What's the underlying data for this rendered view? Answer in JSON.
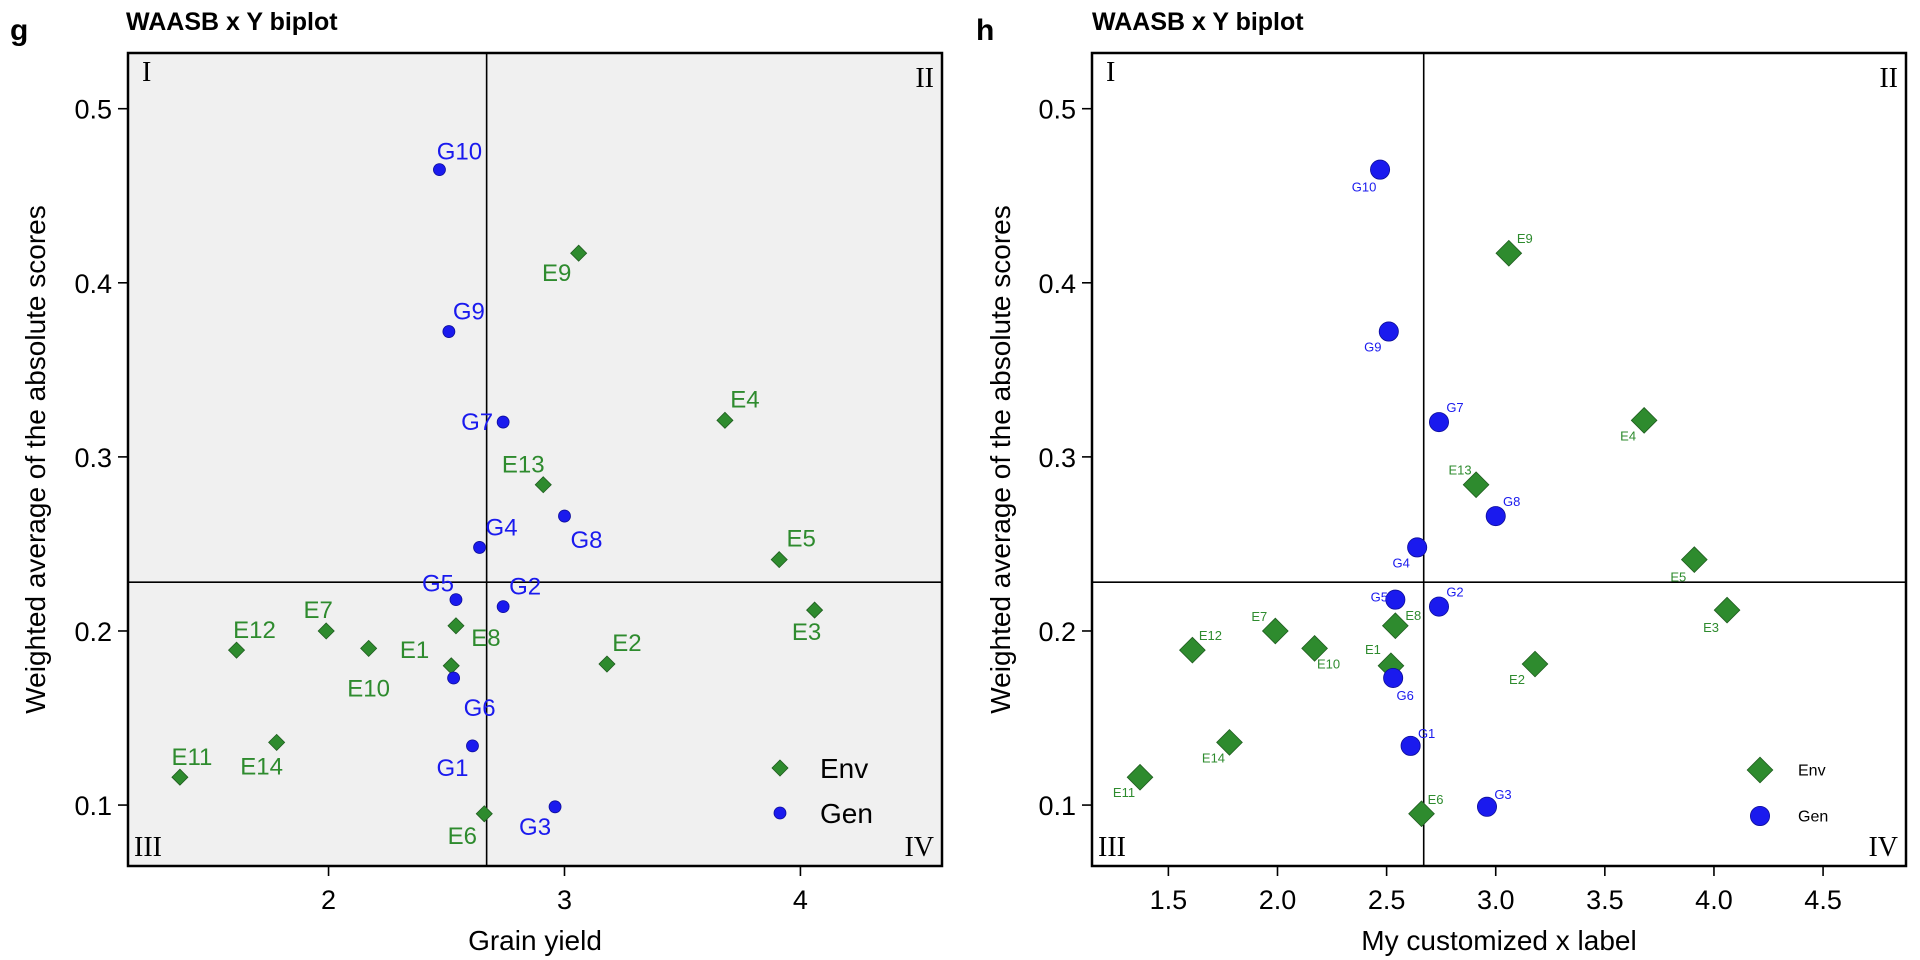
{
  "chart_data": [
    {
      "type": "scatter",
      "panel_label": "g",
      "title": "WAASB x Y biplot",
      "xlabel": "Grain yield",
      "ylabel": "Weighted average of the absolute scores",
      "xlim": [
        1.15,
        4.6
      ],
      "ylim": [
        0.065,
        0.532
      ],
      "xticks": [
        2,
        3,
        4
      ],
      "yticks": [
        0.1,
        0.2,
        0.3,
        0.4,
        0.5
      ],
      "xtick_labels": [
        "2",
        "3",
        "4"
      ],
      "ytick_labels": [
        "0.1",
        "0.2",
        "0.3",
        "0.4",
        "0.5"
      ],
      "background": "#f0f0f0",
      "grid": false,
      "reference_lines": {
        "x": 2.67,
        "y": 0.228
      },
      "quadrant_labels": [
        "I",
        "II",
        "III",
        "IV"
      ],
      "legend": {
        "position": "bottom-right",
        "entries": [
          "Env",
          "Gen"
        ]
      },
      "series": [
        {
          "name": "Env",
          "marker": "diamond",
          "color": "#2e8b2e",
          "points": [
            {
              "label": "E1",
              "x": 2.52,
              "y": 0.18
            },
            {
              "label": "E2",
              "x": 3.18,
              "y": 0.181
            },
            {
              "label": "E3",
              "x": 4.06,
              "y": 0.212
            },
            {
              "label": "E4",
              "x": 3.68,
              "y": 0.321
            },
            {
              "label": "E5",
              "x": 3.91,
              "y": 0.241
            },
            {
              "label": "E6",
              "x": 2.66,
              "y": 0.095
            },
            {
              "label": "E7",
              "x": 1.99,
              "y": 0.2
            },
            {
              "label": "E8",
              "x": 2.54,
              "y": 0.203
            },
            {
              "label": "E9",
              "x": 3.06,
              "y": 0.417
            },
            {
              "label": "E10",
              "x": 2.17,
              "y": 0.19
            },
            {
              "label": "E11",
              "x": 1.37,
              "y": 0.116
            },
            {
              "label": "E12",
              "x": 1.61,
              "y": 0.189
            },
            {
              "label": "E13",
              "x": 2.91,
              "y": 0.284
            },
            {
              "label": "E14",
              "x": 1.78,
              "y": 0.136
            }
          ]
        },
        {
          "name": "Gen",
          "marker": "circle",
          "color": "#1a1aee",
          "points": [
            {
              "label": "G1",
              "x": 2.61,
              "y": 0.134
            },
            {
              "label": "G2",
              "x": 2.74,
              "y": 0.214
            },
            {
              "label": "G3",
              "x": 2.96,
              "y": 0.099
            },
            {
              "label": "G4",
              "x": 2.64,
              "y": 0.248
            },
            {
              "label": "G5",
              "x": 2.54,
              "y": 0.218
            },
            {
              "label": "G6",
              "x": 2.53,
              "y": 0.173
            },
            {
              "label": "G7",
              "x": 2.74,
              "y": 0.32
            },
            {
              "label": "G8",
              "x": 3.0,
              "y": 0.266
            },
            {
              "label": "G9",
              "x": 2.51,
              "y": 0.372
            },
            {
              "label": "G10",
              "x": 2.47,
              "y": 0.465
            }
          ]
        }
      ]
    },
    {
      "type": "scatter",
      "panel_label": "h",
      "title": "WAASB x Y biplot",
      "xlabel": "My customized x label",
      "ylabel": "Weighted average of the absolute scores",
      "xlim": [
        1.15,
        4.88
      ],
      "ylim": [
        0.065,
        0.532
      ],
      "xticks": [
        1.5,
        2.0,
        2.5,
        3.0,
        3.5,
        4.0,
        4.5
      ],
      "yticks": [
        0.1,
        0.2,
        0.3,
        0.4,
        0.5
      ],
      "xtick_labels": [
        "1.5",
        "2.0",
        "2.5",
        "3.0",
        "3.5",
        "4.0",
        "4.5"
      ],
      "ytick_labels": [
        "0.1",
        "0.2",
        "0.3",
        "0.4",
        "0.5"
      ],
      "background": "#ffffff",
      "grid": false,
      "reference_lines": {
        "x": 2.67,
        "y": 0.228
      },
      "quadrant_labels": [
        "I",
        "II",
        "III",
        "IV"
      ],
      "legend": {
        "position": "bottom-right",
        "entries": [
          "Env",
          "Gen"
        ]
      },
      "series": [
        {
          "name": "Env",
          "marker": "diamond",
          "color": "#2e8b2e",
          "points": [
            {
              "label": "E1",
              "x": 2.52,
              "y": 0.18
            },
            {
              "label": "E2",
              "x": 3.18,
              "y": 0.181
            },
            {
              "label": "E3",
              "x": 4.06,
              "y": 0.212
            },
            {
              "label": "E4",
              "x": 3.68,
              "y": 0.321
            },
            {
              "label": "E5",
              "x": 3.91,
              "y": 0.241
            },
            {
              "label": "E6",
              "x": 2.66,
              "y": 0.095
            },
            {
              "label": "E7",
              "x": 1.99,
              "y": 0.2
            },
            {
              "label": "E8",
              "x": 2.54,
              "y": 0.203
            },
            {
              "label": "E9",
              "x": 3.06,
              "y": 0.417
            },
            {
              "label": "E10",
              "x": 2.17,
              "y": 0.19
            },
            {
              "label": "E11",
              "x": 1.37,
              "y": 0.116
            },
            {
              "label": "E12",
              "x": 1.61,
              "y": 0.189
            },
            {
              "label": "E13",
              "x": 2.91,
              "y": 0.284
            },
            {
              "label": "E14",
              "x": 1.78,
              "y": 0.136
            }
          ]
        },
        {
          "name": "Gen",
          "marker": "circle",
          "color": "#1a1aee",
          "points": [
            {
              "label": "G1",
              "x": 2.61,
              "y": 0.134
            },
            {
              "label": "G2",
              "x": 2.74,
              "y": 0.214
            },
            {
              "label": "G3",
              "x": 2.96,
              "y": 0.099
            },
            {
              "label": "G4",
              "x": 2.64,
              "y": 0.248
            },
            {
              "label": "G5",
              "x": 2.54,
              "y": 0.218
            },
            {
              "label": "G6",
              "x": 2.53,
              "y": 0.173
            },
            {
              "label": "G7",
              "x": 2.74,
              "y": 0.32
            },
            {
              "label": "G8",
              "x": 3.0,
              "y": 0.266
            },
            {
              "label": "G9",
              "x": 2.51,
              "y": 0.372
            },
            {
              "label": "G10",
              "x": 2.47,
              "y": 0.465
            }
          ]
        }
      ]
    }
  ]
}
